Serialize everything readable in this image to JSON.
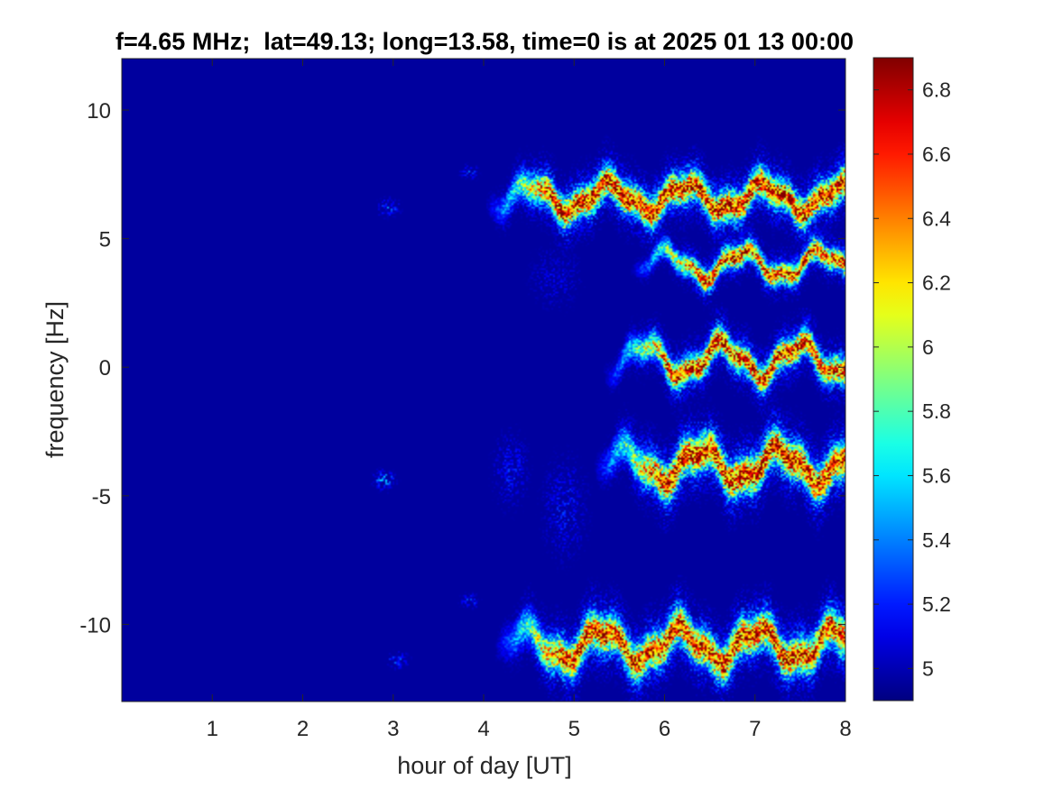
{
  "chart_data": {
    "type": "heatmap",
    "title": "f=4.65 MHz;  lat=49.13; long=13.58, time=0 is at 2025 01 13 00:00",
    "xlabel": "hour of day [UT]",
    "ylabel": "frequency [Hz]",
    "xlim": [
      0,
      8
    ],
    "ylim": [
      -13,
      12
    ],
    "x_ticks": [
      {
        "value": 1,
        "label": "1"
      },
      {
        "value": 2,
        "label": "2"
      },
      {
        "value": 3,
        "label": "3"
      },
      {
        "value": 4,
        "label": "4"
      },
      {
        "value": 5,
        "label": "5"
      },
      {
        "value": 6,
        "label": "6"
      },
      {
        "value": 7,
        "label": "7"
      },
      {
        "value": 8,
        "label": "8"
      }
    ],
    "y_ticks": [
      {
        "value": 10,
        "label": "10"
      },
      {
        "value": 5,
        "label": "5"
      },
      {
        "value": 0,
        "label": "0"
      },
      {
        "value": -5,
        "label": "-5"
      },
      {
        "value": -10,
        "label": "-10"
      }
    ],
    "colorbar": {
      "colormap": "jet",
      "range": [
        4.9,
        6.9
      ],
      "ticks": [
        {
          "value": 5,
          "label": "5"
        },
        {
          "value": 5.2,
          "label": "5.2"
        },
        {
          "value": 5.4,
          "label": "5.4"
        },
        {
          "value": 5.6,
          "label": "5.6"
        },
        {
          "value": 5.8,
          "label": "5.8"
        },
        {
          "value": 6,
          "label": "6"
        },
        {
          "value": 6.2,
          "label": "6.2"
        },
        {
          "value": 6.4,
          "label": "6.4"
        },
        {
          "value": 6.6,
          "label": "6.6"
        },
        {
          "value": 6.8,
          "label": "6.8"
        }
      ]
    },
    "background_value": 4.9,
    "traces": [
      {
        "x_start": 4.0,
        "x_end": 8.0,
        "y_center": 6.6,
        "amplitude": 0.5,
        "width": 0.5,
        "peak": 6.85
      },
      {
        "x_start": 5.6,
        "x_end": 8.0,
        "y_center": 4.0,
        "amplitude": 0.5,
        "width": 0.35,
        "peak": 6.7
      },
      {
        "x_start": 5.3,
        "x_end": 8.0,
        "y_center": 0.3,
        "amplitude": 0.6,
        "width": 0.45,
        "peak": 6.75
      },
      {
        "x_start": 5.2,
        "x_end": 8.0,
        "y_center": -3.8,
        "amplitude": 0.6,
        "width": 0.6,
        "peak": 6.85
      },
      {
        "x_start": 4.1,
        "x_end": 8.0,
        "y_center": -10.8,
        "amplitude": 0.6,
        "width": 0.6,
        "peak": 6.8
      }
    ],
    "patches": [
      {
        "x": 2.95,
        "y": 6.2,
        "rx": 0.12,
        "ry": 0.35,
        "peak": 5.5
      },
      {
        "x": 2.9,
        "y": -4.4,
        "rx": 0.12,
        "ry": 0.35,
        "peak": 5.7
      },
      {
        "x": 3.05,
        "y": -11.4,
        "rx": 0.12,
        "ry": 0.3,
        "peak": 5.5
      },
      {
        "x": 3.85,
        "y": -9.1,
        "rx": 0.1,
        "ry": 0.3,
        "peak": 5.4
      },
      {
        "x": 3.85,
        "y": 7.6,
        "rx": 0.1,
        "ry": 0.3,
        "peak": 5.4
      },
      {
        "x": 4.3,
        "y": -4.0,
        "rx": 0.2,
        "ry": 1.5,
        "peak": 5.3
      },
      {
        "x": 4.9,
        "y": -5.5,
        "rx": 0.25,
        "ry": 2.0,
        "peak": 5.3
      },
      {
        "x": 4.8,
        "y": 3.5,
        "rx": 0.3,
        "ry": 1.3,
        "peak": 5.2
      }
    ]
  }
}
